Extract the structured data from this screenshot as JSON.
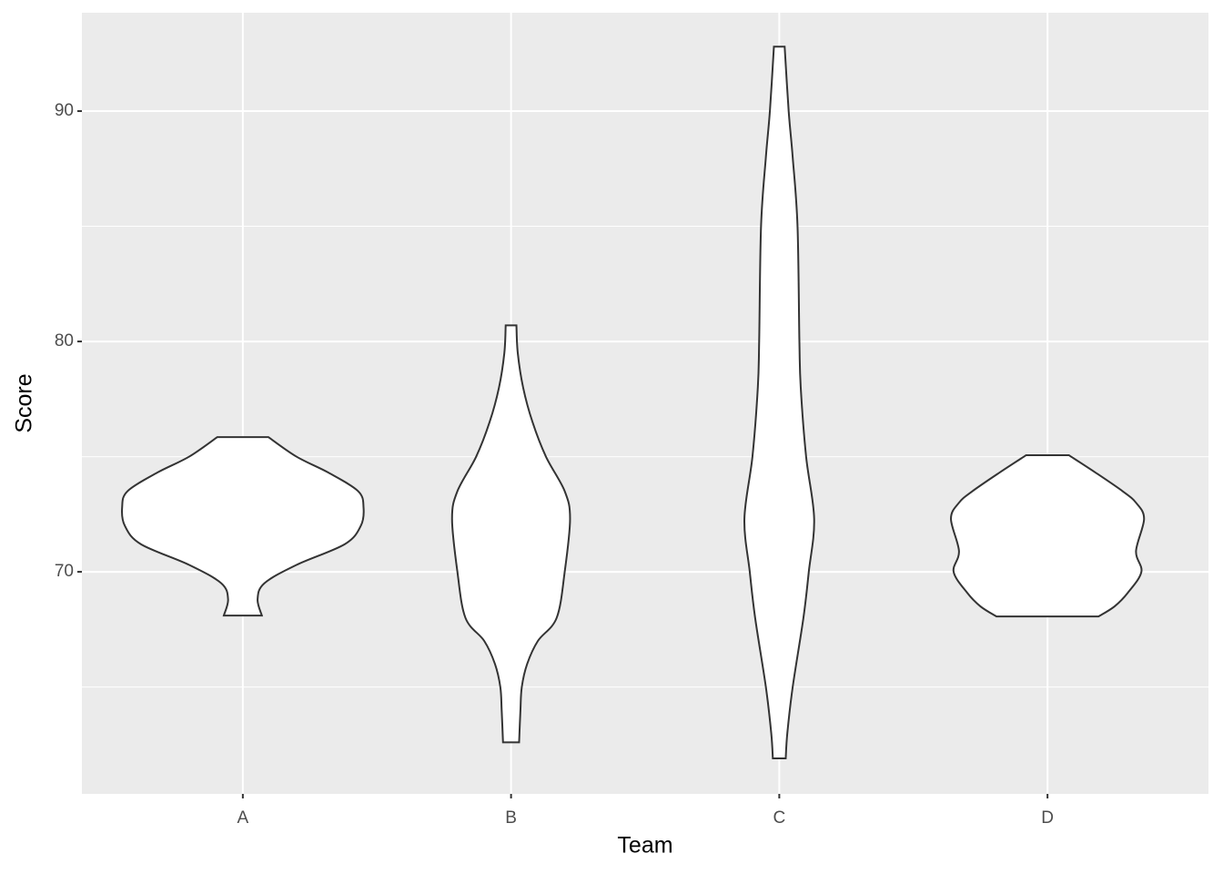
{
  "chart_data": {
    "type": "violin",
    "x_label": "Team",
    "y_label": "Score",
    "categories": [
      "A",
      "B",
      "C",
      "D"
    ],
    "violins": [
      {
        "y": [
          68.1,
          68.8,
          69.5,
          70.3,
          71.2,
          72.0,
          72.8,
          73.5,
          74.3,
          75.0,
          75.85
        ],
        "width": [
          0.071,
          0.055,
          0.08,
          0.2,
          0.38,
          0.44,
          0.45,
          0.43,
          0.32,
          0.2,
          0.095
        ]
      },
      {
        "y": [
          62.6,
          64,
          65,
          66,
          67,
          68,
          70,
          72.3,
          73.5,
          75,
          76.5,
          78,
          79.5,
          80.7
        ],
        "width": [
          0.03,
          0.035,
          0.04,
          0.06,
          0.1,
          0.17,
          0.2,
          0.22,
          0.2,
          0.13,
          0.08,
          0.045,
          0.025,
          0.02
        ]
      },
      {
        "y": [
          61.9,
          63,
          65,
          68,
          70,
          72.3,
          75,
          78,
          80,
          85,
          88,
          90,
          92.8
        ],
        "width": [
          0.024,
          0.03,
          0.05,
          0.09,
          0.11,
          0.13,
          0.1,
          0.08,
          0.075,
          0.068,
          0.05,
          0.035,
          0.02
        ]
      },
      {
        "y": [
          68.06,
          68.5,
          69.1,
          70,
          70.9,
          72.3,
          73,
          73.5,
          74.3,
          75.06
        ],
        "width": [
          0.19,
          0.25,
          0.3,
          0.35,
          0.33,
          0.36,
          0.33,
          0.28,
          0.18,
          0.08
        ]
      }
    ],
    "fill": "#ffffff",
    "outline": "#333333",
    "ylim": [
      60.36,
      94.27
    ],
    "yticks": [
      70,
      80,
      90
    ],
    "minor_yticks": [
      65,
      75,
      85
    ],
    "grid": true
  }
}
